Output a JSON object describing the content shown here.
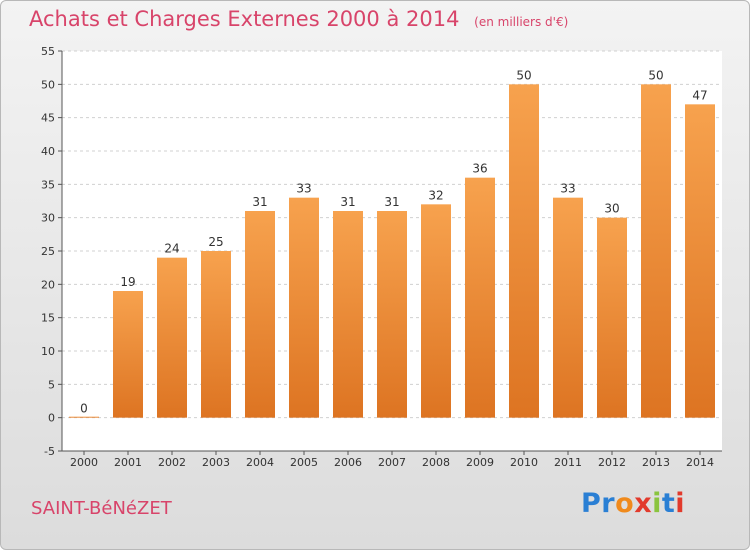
{
  "chart_data": {
    "type": "bar",
    "title": "Achats et Charges Externes 2000 à 2014",
    "subtitle": "(en milliers d'€)",
    "categories": [
      "2000",
      "2001",
      "2002",
      "2003",
      "2004",
      "2005",
      "2006",
      "2007",
      "2008",
      "2009",
      "2010",
      "2011",
      "2012",
      "2013",
      "2014"
    ],
    "values": [
      0,
      19,
      24,
      25,
      31,
      33,
      31,
      31,
      32,
      36,
      50,
      33,
      30,
      50,
      47
    ],
    "ylim": [
      -5,
      55
    ],
    "yticks": [
      -5,
      0,
      5,
      10,
      15,
      20,
      25,
      30,
      35,
      40,
      45,
      50,
      55
    ],
    "grid": true,
    "xlabel": "",
    "ylabel": "",
    "bar_color_top": "#f7a24e",
    "bar_color_bottom": "#dd7422"
  },
  "footer": {
    "commune": "SAINT-BéNéZET",
    "logo_letters": [
      {
        "ch": "P",
        "color": "#2a7fd4"
      },
      {
        "ch": "r",
        "color": "#2a7fd4"
      },
      {
        "ch": "o",
        "color": "#f08a1c"
      },
      {
        "ch": "x",
        "color": "#e23a2c"
      },
      {
        "ch": "i",
        "color": "#8ac43f"
      },
      {
        "ch": "t",
        "color": "#2a7fd4"
      },
      {
        "ch": "i",
        "color": "#e23a2c"
      }
    ]
  }
}
